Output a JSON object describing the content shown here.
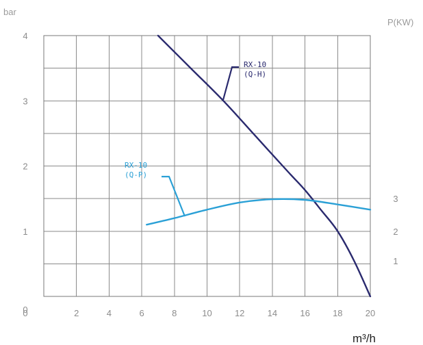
{
  "chart_data": {
    "type": "line",
    "title": "",
    "xlabel": "m³/h",
    "ylabel_left": "bar",
    "ylabel_right": "P(KW)",
    "xlim": [
      0,
      20
    ],
    "ylim_left": [
      0,
      4
    ],
    "ylim_right": [
      0,
      4
    ],
    "x_ticks": [
      0,
      2,
      4,
      6,
      8,
      10,
      12,
      14,
      16,
      18,
      20
    ],
    "x_tick_labels": [
      "0",
      "2",
      "4",
      "6",
      "8",
      "10",
      "12",
      "14",
      "16",
      "18",
      "20"
    ],
    "y_left_ticks": [
      0,
      1,
      2,
      3,
      4
    ],
    "y_left_tick_labels": [
      "0",
      "1",
      "2",
      "3",
      "4"
    ],
    "y_right_ticks": [
      1,
      2,
      3
    ],
    "y_right_tick_labels": [
      "1",
      "2",
      "3"
    ],
    "grid": true,
    "series": [
      {
        "name": "RX-10 (Q-H)",
        "label_lines": [
          "RX-10",
          "(Q-H)"
        ],
        "axis": "left",
        "color": "#2a2a6e",
        "points": [
          [
            7,
            4.0
          ],
          [
            9,
            3.5
          ],
          [
            11,
            3.0
          ],
          [
            13,
            2.45
          ],
          [
            15,
            1.9
          ],
          [
            16,
            1.63
          ],
          [
            17,
            1.32
          ],
          [
            18,
            1.0
          ],
          [
            19,
            0.55
          ],
          [
            20,
            0.0
          ]
        ]
      },
      {
        "name": "RX-10 (Q-P)",
        "label_lines": [
          "RX-10",
          "(Q-P)"
        ],
        "axis": "right",
        "color": "#2aa0d6",
        "points": [
          [
            6.3,
            1.1
          ],
          [
            8,
            1.2
          ],
          [
            10,
            1.33
          ],
          [
            12,
            1.44
          ],
          [
            14,
            1.49
          ],
          [
            16,
            1.48
          ],
          [
            18,
            1.41
          ],
          [
            20,
            1.33
          ]
        ]
      }
    ]
  }
}
